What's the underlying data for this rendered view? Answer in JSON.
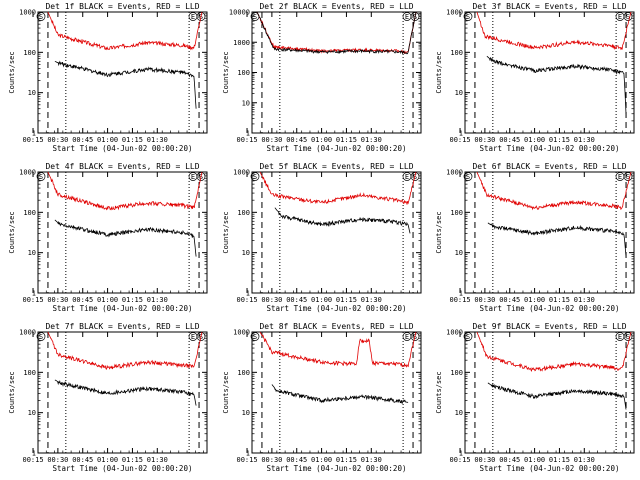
{
  "chart_data": [
    {
      "type": "line",
      "title": "Det 1f BLACK = Events, RED = LLD",
      "xlabel": "Start Time (04-Jun-02 00:00:20)",
      "ylabel": "Counts/sec",
      "yscale": "log",
      "ylim": [
        1,
        1000
      ],
      "xticks": [
        "00:15",
        "00:30",
        "00:45",
        "01:00",
        "01:15",
        "01:30"
      ],
      "yticks": [
        "1",
        "10",
        "100",
        "1000"
      ],
      "markers": [
        "S",
        "E",
        "S"
      ],
      "lld": [
        [
          0.4,
          1000
        ],
        [
          0.5,
          270
        ],
        [
          1.0,
          125
        ],
        [
          1.4,
          175
        ],
        [
          1.75,
          150
        ],
        [
          1.87,
          130
        ],
        [
          1.95,
          1000
        ]
      ],
      "events": [
        [
          0.47,
          60
        ],
        [
          0.5,
          55
        ],
        [
          1.0,
          28
        ],
        [
          1.4,
          38
        ],
        [
          1.75,
          32
        ],
        [
          1.87,
          25
        ],
        [
          1.89,
          4
        ]
      ],
      "series": [
        {
          "name": "BLACK = Events",
          "color": "#000000"
        },
        {
          "name": "RED = LLD",
          "color": "#e00000"
        }
      ]
    },
    {
      "type": "line",
      "title": "Det 2f BLACK = Events, RED = LLD",
      "xlabel": "Start Time (04-Jun-02 00:00:20)",
      "ylabel": "Counts/sec",
      "yscale": "log",
      "ylim": [
        1,
        10000
      ],
      "xticks": [
        "00:15",
        "00:30",
        "00:45",
        "01:00",
        "01:15",
        "01:30"
      ],
      "yticks": [
        "1",
        "10",
        "100",
        "1000",
        "10000"
      ],
      "markers": [
        "S",
        "E",
        "S"
      ],
      "lld": [
        [
          0.35,
          10000
        ],
        [
          0.52,
          700
        ],
        [
          1.0,
          520
        ],
        [
          1.4,
          560
        ],
        [
          1.75,
          520
        ],
        [
          1.87,
          470
        ],
        [
          1.95,
          10000
        ]
      ],
      "events": [
        [
          0.35,
          10000
        ],
        [
          0.52,
          600
        ],
        [
          1.0,
          480
        ],
        [
          1.4,
          510
        ],
        [
          1.75,
          480
        ],
        [
          1.87,
          450
        ],
        [
          1.95,
          10000
        ]
      ],
      "series": [
        {
          "name": "BLACK = Events",
          "color": "#000000"
        },
        {
          "name": "RED = LLD",
          "color": "#e00000"
        }
      ]
    },
    {
      "type": "line",
      "title": "Det 3f BLACK = Events, RED = LLD",
      "xlabel": "Start Time (04-Jun-02 00:00:20)",
      "ylabel": "Counts/sec",
      "yscale": "log",
      "ylim": [
        1,
        1000
      ],
      "xticks": [
        "00:15",
        "00:30",
        "00:45",
        "01:00",
        "01:15",
        "01:30"
      ],
      "yticks": [
        "1",
        "10",
        "100",
        "1000"
      ],
      "markers": [
        "S",
        "E",
        "S"
      ],
      "lld": [
        [
          0.42,
          1000
        ],
        [
          0.5,
          250
        ],
        [
          1.0,
          130
        ],
        [
          1.4,
          180
        ],
        [
          1.75,
          150
        ],
        [
          1.88,
          125
        ],
        [
          1.97,
          1000
        ]
      ],
      "events": [
        [
          0.52,
          80
        ],
        [
          0.58,
          60
        ],
        [
          1.0,
          35
        ],
        [
          1.4,
          45
        ],
        [
          1.75,
          38
        ],
        [
          1.9,
          30
        ],
        [
          1.92,
          3
        ]
      ],
      "series": [
        {
          "name": "BLACK = Events",
          "color": "#000000"
        },
        {
          "name": "RED = LLD",
          "color": "#e00000"
        }
      ]
    },
    {
      "type": "line",
      "title": "Det 4f BLACK = Events, RED = LLD",
      "xlabel": "Start Time (04-Jun-02 00:00:20)",
      "ylabel": "Counts/sec",
      "yscale": "log",
      "ylim": [
        1,
        1000
      ],
      "xticks": [
        "00:15",
        "00:30",
        "00:45",
        "01:00",
        "01:15",
        "01:30"
      ],
      "yticks": [
        "1",
        "10",
        "100",
        "1000"
      ],
      "markers": [
        "S",
        "E",
        "S"
      ],
      "lld": [
        [
          0.4,
          1000
        ],
        [
          0.5,
          280
        ],
        [
          1.0,
          125
        ],
        [
          1.4,
          170
        ],
        [
          1.75,
          150
        ],
        [
          1.87,
          130
        ],
        [
          1.95,
          1000
        ]
      ],
      "events": [
        [
          0.47,
          65
        ],
        [
          0.52,
          50
        ],
        [
          1.0,
          28
        ],
        [
          1.4,
          38
        ],
        [
          1.75,
          32
        ],
        [
          1.87,
          25
        ],
        [
          1.89,
          8
        ]
      ],
      "series": [
        {
          "name": "BLACK = Events",
          "color": "#000000"
        },
        {
          "name": "RED = LLD",
          "color": "#e00000"
        }
      ]
    },
    {
      "type": "line",
      "title": "Det 5f BLACK = Events, RED = LLD",
      "xlabel": "Start Time (04-Jun-02 00:00:20)",
      "ylabel": "Counts/sec",
      "yscale": "log",
      "ylim": [
        1,
        1000
      ],
      "xticks": [
        "00:15",
        "00:30",
        "00:45",
        "01:00",
        "01:15",
        "01:30"
      ],
      "yticks": [
        "1",
        "10",
        "100",
        "1000"
      ],
      "markers": [
        "S",
        "E",
        "S"
      ],
      "lld": [
        [
          0.38,
          1000
        ],
        [
          0.5,
          270
        ],
        [
          1.0,
          175
        ],
        [
          1.4,
          270
        ],
        [
          1.75,
          200
        ],
        [
          1.87,
          170
        ],
        [
          1.95,
          1000
        ]
      ],
      "events": [
        [
          0.53,
          130
        ],
        [
          0.6,
          80
        ],
        [
          1.0,
          50
        ],
        [
          1.4,
          68
        ],
        [
          1.75,
          58
        ],
        [
          1.87,
          50
        ],
        [
          1.89,
          30
        ]
      ],
      "series": [
        {
          "name": "BLACK = Events",
          "color": "#000000"
        },
        {
          "name": "RED = LLD",
          "color": "#e00000"
        }
      ]
    },
    {
      "type": "line",
      "title": "Det 6f BLACK = Events, RED = LLD",
      "xlabel": "Start Time (04-Jun-02 00:00:20)",
      "ylabel": "Counts/sec",
      "yscale": "log",
      "ylim": [
        1,
        1000
      ],
      "xticks": [
        "00:15",
        "00:30",
        "00:45",
        "01:00",
        "01:15",
        "01:30"
      ],
      "yticks": [
        "1",
        "10",
        "100",
        "1000"
      ],
      "markers": [
        "S",
        "E",
        "S"
      ],
      "lld": [
        [
          0.42,
          1000
        ],
        [
          0.52,
          270
        ],
        [
          1.0,
          130
        ],
        [
          1.4,
          180
        ],
        [
          1.75,
          150
        ],
        [
          1.88,
          130
        ],
        [
          1.97,
          1000
        ]
      ],
      "events": [
        [
          0.53,
          55
        ],
        [
          0.58,
          45
        ],
        [
          1.0,
          30
        ],
        [
          1.4,
          42
        ],
        [
          1.75,
          35
        ],
        [
          1.9,
          28
        ],
        [
          1.92,
          8
        ]
      ],
      "series": [
        {
          "name": "BLACK = Events",
          "color": "#000000"
        },
        {
          "name": "RED = LLD",
          "color": "#e00000"
        }
      ]
    },
    {
      "type": "line",
      "title": "Det 7f BLACK = Events, RED = LLD",
      "xlabel": "Start Time (04-Jun-02 00:00:20)",
      "ylabel": "Counts/sec",
      "yscale": "log",
      "ylim": [
        1,
        1000
      ],
      "xticks": [
        "00:15",
        "00:30",
        "00:45",
        "01:00",
        "01:15",
        "01:30"
      ],
      "yticks": [
        "1",
        "10",
        "100",
        "1000"
      ],
      "markers": [
        "S",
        "E",
        "S"
      ],
      "lld": [
        [
          0.4,
          1000
        ],
        [
          0.5,
          280
        ],
        [
          1.0,
          130
        ],
        [
          1.4,
          180
        ],
        [
          1.75,
          150
        ],
        [
          1.87,
          140
        ],
        [
          1.95,
          1000
        ]
      ],
      "events": [
        [
          0.47,
          65
        ],
        [
          0.52,
          55
        ],
        [
          1.0,
          30
        ],
        [
          1.4,
          40
        ],
        [
          1.75,
          33
        ],
        [
          1.87,
          28
        ],
        [
          1.89,
          15
        ]
      ],
      "series": [
        {
          "name": "BLACK = Events",
          "color": "#000000"
        },
        {
          "name": "RED = LLD",
          "color": "#e00000"
        }
      ]
    },
    {
      "type": "line",
      "title": "Det 8f BLACK = Events, RED = LLD",
      "xlabel": "Start Time (04-Jun-02 00:00:20)",
      "ylabel": "Counts/sec",
      "yscale": "log",
      "ylim": [
        1,
        1000
      ],
      "xticks": [
        "00:15",
        "00:30",
        "00:45",
        "01:00",
        "01:15",
        "01:30"
      ],
      "yticks": [
        "1",
        "10",
        "100",
        "1000"
      ],
      "markers": [
        "S",
        "E",
        "S"
      ],
      "lld": [
        [
          0.38,
          1000
        ],
        [
          0.5,
          320
        ],
        [
          1.0,
          180
        ],
        [
          1.35,
          160
        ],
        [
          1.38,
          600
        ],
        [
          1.48,
          600
        ],
        [
          1.51,
          170
        ],
        [
          1.75,
          160
        ],
        [
          1.87,
          150
        ],
        [
          1.95,
          1000
        ]
      ],
      "events": [
        [
          0.5,
          50
        ],
        [
          0.55,
          35
        ],
        [
          1.0,
          20
        ],
        [
          1.4,
          25
        ],
        [
          1.75,
          20
        ],
        [
          1.87,
          18
        ]
      ],
      "series": [
        {
          "name": "BLACK = Events",
          "color": "#000000"
        },
        {
          "name": "RED = LLD",
          "color": "#e00000"
        }
      ]
    },
    {
      "type": "line",
      "title": "Det 9f BLACK = Events, RED = LLD",
      "xlabel": "Start Time (04-Jun-02 00:00:20)",
      "ylabel": "Counts/sec",
      "yscale": "log",
      "ylim": [
        1,
        1000
      ],
      "xticks": [
        "00:15",
        "00:30",
        "00:45",
        "01:00",
        "01:15",
        "01:30"
      ],
      "yticks": [
        "1",
        "10",
        "100",
        "1000"
      ],
      "markers": [
        "S",
        "E",
        "S"
      ],
      "lld": [
        [
          0.42,
          1000
        ],
        [
          0.52,
          250
        ],
        [
          1.0,
          115
        ],
        [
          1.4,
          160
        ],
        [
          1.75,
          135
        ],
        [
          1.88,
          120
        ],
        [
          1.97,
          1000
        ]
      ],
      "events": [
        [
          0.53,
          55
        ],
        [
          0.58,
          45
        ],
        [
          1.0,
          25
        ],
        [
          1.4,
          35
        ],
        [
          1.75,
          30
        ],
        [
          1.9,
          25
        ],
        [
          1.92,
          12
        ]
      ],
      "series": [
        {
          "name": "BLACK = Events",
          "color": "#000000"
        },
        {
          "name": "RED = LLD",
          "color": "#e00000"
        }
      ]
    }
  ]
}
